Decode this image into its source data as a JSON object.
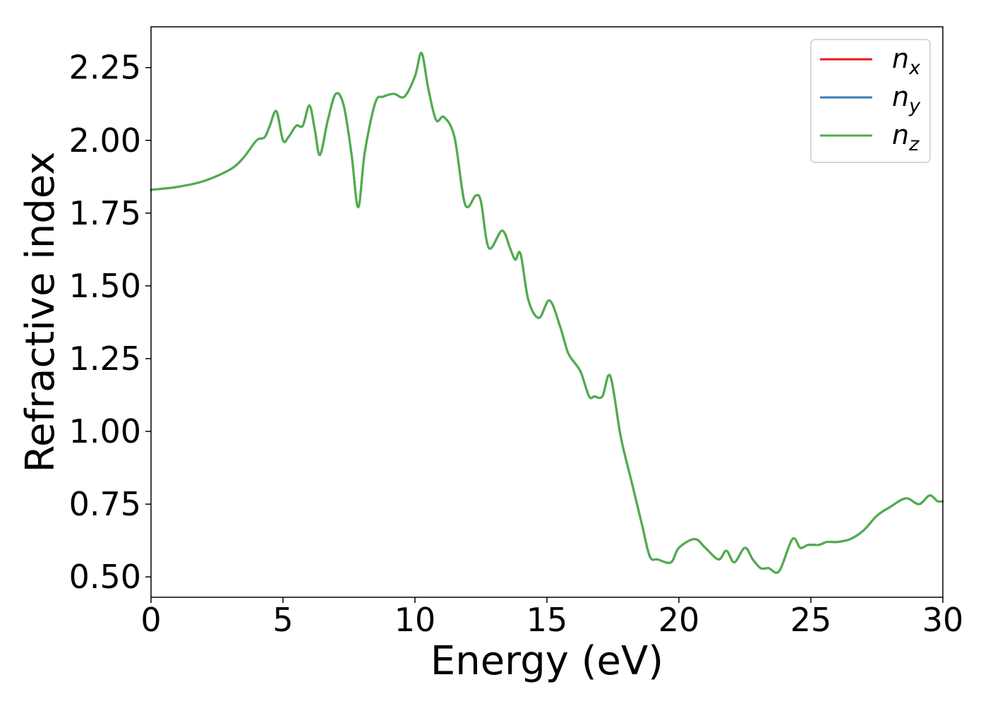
{
  "chart_data": {
    "type": "line",
    "title": "",
    "xlabel": "Energy (eV)",
    "ylabel": "Refractive index",
    "xlim": [
      0,
      30
    ],
    "ylim": [
      0.43,
      2.39
    ],
    "xticks": [
      0,
      5,
      10,
      15,
      20,
      25,
      30
    ],
    "xtick_labels": [
      "0",
      "5",
      "10",
      "15",
      "20",
      "25",
      "30"
    ],
    "yticks": [
      0.5,
      0.75,
      1.0,
      1.25,
      1.5,
      1.75,
      2.0,
      2.25
    ],
    "ytick_labels": [
      "0.50",
      "0.75",
      "1.00",
      "1.25",
      "1.50",
      "1.75",
      "2.00",
      "2.25"
    ],
    "grid": false,
    "legend_position": "upper-right",
    "legend": [
      {
        "base": "n",
        "sub": "x"
      },
      {
        "base": "n",
        "sub": "y"
      },
      {
        "base": "n",
        "sub": "z"
      }
    ],
    "x": [
      0,
      1,
      2,
      3,
      3.5,
      4,
      4.3,
      4.5,
      4.75,
      5,
      5.2,
      5.5,
      5.75,
      6,
      6.2,
      6.4,
      6.7,
      7,
      7.3,
      7.6,
      7.85,
      8.1,
      8.5,
      8.8,
      9.2,
      9.6,
      10,
      10.25,
      10.5,
      10.8,
      11.1,
      11.5,
      11.9,
      12.3,
      12.5,
      12.8,
      13.3,
      13.6,
      13.8,
      14,
      14.3,
      14.7,
      15.1,
      15.5,
      15.8,
      16.1,
      16.3,
      16.6,
      16.8,
      17.1,
      17.4,
      17.8,
      18.2,
      18.6,
      18.9,
      19.2,
      19.7,
      20,
      20.6,
      21,
      21.5,
      21.8,
      22.1,
      22.5,
      22.8,
      23.1,
      23.4,
      23.8,
      24.3,
      24.6,
      24.9,
      25.3,
      25.6,
      26,
      26.5,
      27,
      27.5,
      28,
      28.6,
      29.1,
      29.5,
      29.8,
      30
    ],
    "series": [
      {
        "name": "nx",
        "color": "#e41a1c",
        "values": [
          1.83,
          1.84,
          1.86,
          1.9,
          1.94,
          2.0,
          2.01,
          2.05,
          2.1,
          2.0,
          2.01,
          2.05,
          2.05,
          2.12,
          2.04,
          1.95,
          2.07,
          2.16,
          2.12,
          1.95,
          1.77,
          1.96,
          2.13,
          2.15,
          2.16,
          2.15,
          2.22,
          2.3,
          2.18,
          2.07,
          2.08,
          2.01,
          1.78,
          1.81,
          1.79,
          1.63,
          1.69,
          1.63,
          1.59,
          1.61,
          1.45,
          1.39,
          1.45,
          1.36,
          1.27,
          1.23,
          1.2,
          1.12,
          1.12,
          1.12,
          1.19,
          0.98,
          0.83,
          0.68,
          0.57,
          0.56,
          0.55,
          0.6,
          0.63,
          0.6,
          0.56,
          0.59,
          0.55,
          0.6,
          0.56,
          0.53,
          0.53,
          0.52,
          0.63,
          0.6,
          0.61,
          0.61,
          0.62,
          0.62,
          0.63,
          0.66,
          0.71,
          0.74,
          0.77,
          0.75,
          0.78,
          0.76,
          0.76
        ]
      },
      {
        "name": "ny",
        "color": "#377eb8",
        "values": [
          1.83,
          1.84,
          1.86,
          1.9,
          1.94,
          2.0,
          2.01,
          2.05,
          2.1,
          2.0,
          2.01,
          2.05,
          2.05,
          2.12,
          2.04,
          1.95,
          2.07,
          2.16,
          2.12,
          1.95,
          1.77,
          1.96,
          2.13,
          2.15,
          2.16,
          2.15,
          2.22,
          2.3,
          2.18,
          2.07,
          2.08,
          2.01,
          1.78,
          1.81,
          1.79,
          1.63,
          1.69,
          1.63,
          1.59,
          1.61,
          1.45,
          1.39,
          1.45,
          1.36,
          1.27,
          1.23,
          1.2,
          1.12,
          1.12,
          1.12,
          1.19,
          0.98,
          0.83,
          0.68,
          0.57,
          0.56,
          0.55,
          0.6,
          0.63,
          0.6,
          0.56,
          0.59,
          0.55,
          0.6,
          0.56,
          0.53,
          0.53,
          0.52,
          0.63,
          0.6,
          0.61,
          0.61,
          0.62,
          0.62,
          0.63,
          0.66,
          0.71,
          0.74,
          0.77,
          0.75,
          0.78,
          0.76,
          0.76
        ]
      },
      {
        "name": "nz",
        "color": "#4daf4a",
        "values": [
          1.83,
          1.84,
          1.86,
          1.9,
          1.94,
          2.0,
          2.01,
          2.05,
          2.1,
          2.0,
          2.01,
          2.05,
          2.05,
          2.12,
          2.04,
          1.95,
          2.07,
          2.16,
          2.12,
          1.95,
          1.77,
          1.96,
          2.13,
          2.15,
          2.16,
          2.15,
          2.22,
          2.3,
          2.18,
          2.07,
          2.08,
          2.01,
          1.78,
          1.81,
          1.79,
          1.63,
          1.69,
          1.63,
          1.59,
          1.61,
          1.45,
          1.39,
          1.45,
          1.36,
          1.27,
          1.23,
          1.2,
          1.12,
          1.12,
          1.12,
          1.19,
          0.98,
          0.83,
          0.68,
          0.57,
          0.56,
          0.55,
          0.6,
          0.63,
          0.6,
          0.56,
          0.59,
          0.55,
          0.6,
          0.56,
          0.53,
          0.53,
          0.52,
          0.63,
          0.6,
          0.61,
          0.61,
          0.62,
          0.62,
          0.63,
          0.66,
          0.71,
          0.74,
          0.77,
          0.75,
          0.78,
          0.76,
          0.76
        ]
      }
    ]
  }
}
